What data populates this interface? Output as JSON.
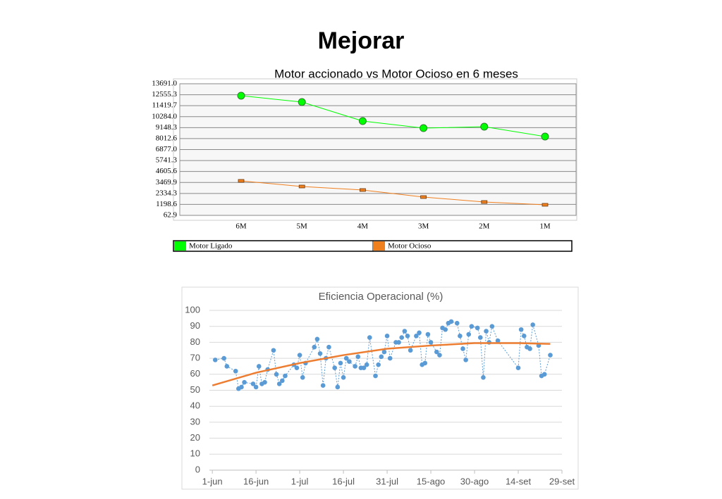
{
  "title": "Mejorar",
  "chart_data": [
    {
      "type": "line",
      "title": "Motor accionado vs  Motor Ocioso en 6 meses",
      "categories": [
        "6M",
        "5M",
        "4M",
        "3M",
        "2M",
        "1M"
      ],
      "series": [
        {
          "name": "Motor Ligado",
          "color": "#00ff00",
          "marker": "circle",
          "values": [
            12452,
            11796,
            9827,
            9098,
            9243,
            8223
          ]
        },
        {
          "name": "Motor Ocioso",
          "color": "#f07f1e",
          "marker": "rect",
          "values": [
            3635,
            3052,
            2688,
            1959,
            1448,
            1157
          ]
        }
      ],
      "ylim": [
        62.9,
        13691
      ],
      "yticks": [
        62.9,
        1198.6,
        2334.3,
        3469.9,
        4605.6,
        5741.3,
        {
          "value": 6877,
          "label": "6877.0"
        },
        8012.6,
        9148.3,
        {
          "value": 10284,
          "label": "10284.0"
        },
        11419.7,
        12555.3,
        {
          "value": 13691,
          "label": "13691.0"
        }
      ],
      "grid": true,
      "legend": "bottom"
    },
    {
      "type": "scatter",
      "title": "Eficiencia Operacional (%)",
      "series": [
        {
          "color": "#5b9bd5",
          "line": "dotted",
          "x": [
            1,
            4,
            5,
            8,
            9,
            10,
            11,
            14,
            15,
            16,
            17,
            18,
            19,
            21,
            22,
            23,
            24,
            25,
            28,
            29,
            30,
            31,
            32,
            35,
            36,
            37,
            38,
            39,
            40,
            42,
            43,
            44,
            45,
            46,
            47,
            49,
            50,
            51,
            52,
            53,
            54,
            56,
            57,
            58,
            59,
            60,
            61,
            63,
            64,
            65,
            66,
            67,
            68,
            70,
            71,
            72,
            73,
            74,
            75,
            77,
            78,
            79,
            80,
            81,
            82,
            84,
            85,
            86,
            87,
            88,
            89,
            91,
            92,
            93,
            94,
            95,
            96,
            98,
            105,
            106,
            107,
            108,
            109,
            110,
            112,
            113,
            114,
            116
          ],
          "values": [
            69,
            70,
            65,
            62,
            51,
            52,
            55,
            54,
            52,
            65,
            54,
            55,
            63,
            75,
            60,
            54,
            56,
            59,
            66,
            64,
            72,
            58,
            67,
            77,
            82,
            73,
            53,
            70,
            77,
            64,
            52,
            67,
            58,
            70,
            68,
            65,
            71,
            64,
            64,
            66,
            83,
            59,
            66,
            71,
            74,
            84,
            70,
            80,
            80,
            83,
            87,
            84,
            75,
            84,
            86,
            66,
            67,
            85,
            80,
            74,
            72,
            89,
            88,
            92,
            93,
            92,
            84,
            76,
            69,
            85,
            90,
            89,
            83,
            58,
            87,
            80,
            90,
            81,
            64,
            88,
            84,
            77,
            76,
            91,
            78,
            59,
            60,
            72
          ]
        },
        {
          "color": "#ed7d31",
          "line": "solid",
          "x": [
            0,
            15,
            30,
            45,
            60,
            75,
            90,
            105,
            116
          ],
          "values": [
            53,
            61,
            67,
            72,
            76,
            78,
            79.5,
            79.5,
            79
          ]
        }
      ],
      "xlim": [
        -1,
        120
      ],
      "ylim": [
        0,
        100
      ],
      "xticks": [
        {
          "value": 0,
          "label": "1-jun"
        },
        {
          "value": 15,
          "label": "16-jun"
        },
        {
          "value": 30,
          "label": "1-jul"
        },
        {
          "value": 45,
          "label": "16-jul"
        },
        {
          "value": 60,
          "label": "31-jul"
        },
        {
          "value": 75,
          "label": "15-ago"
        },
        {
          "value": 90,
          "label": "30-ago"
        },
        {
          "value": 105,
          "label": "14-set"
        },
        {
          "value": 120,
          "label": "29-set"
        }
      ],
      "yticks": [
        0,
        10,
        20,
        30,
        40,
        50,
        60,
        70,
        80,
        90,
        100
      ],
      "grid": true
    }
  ]
}
